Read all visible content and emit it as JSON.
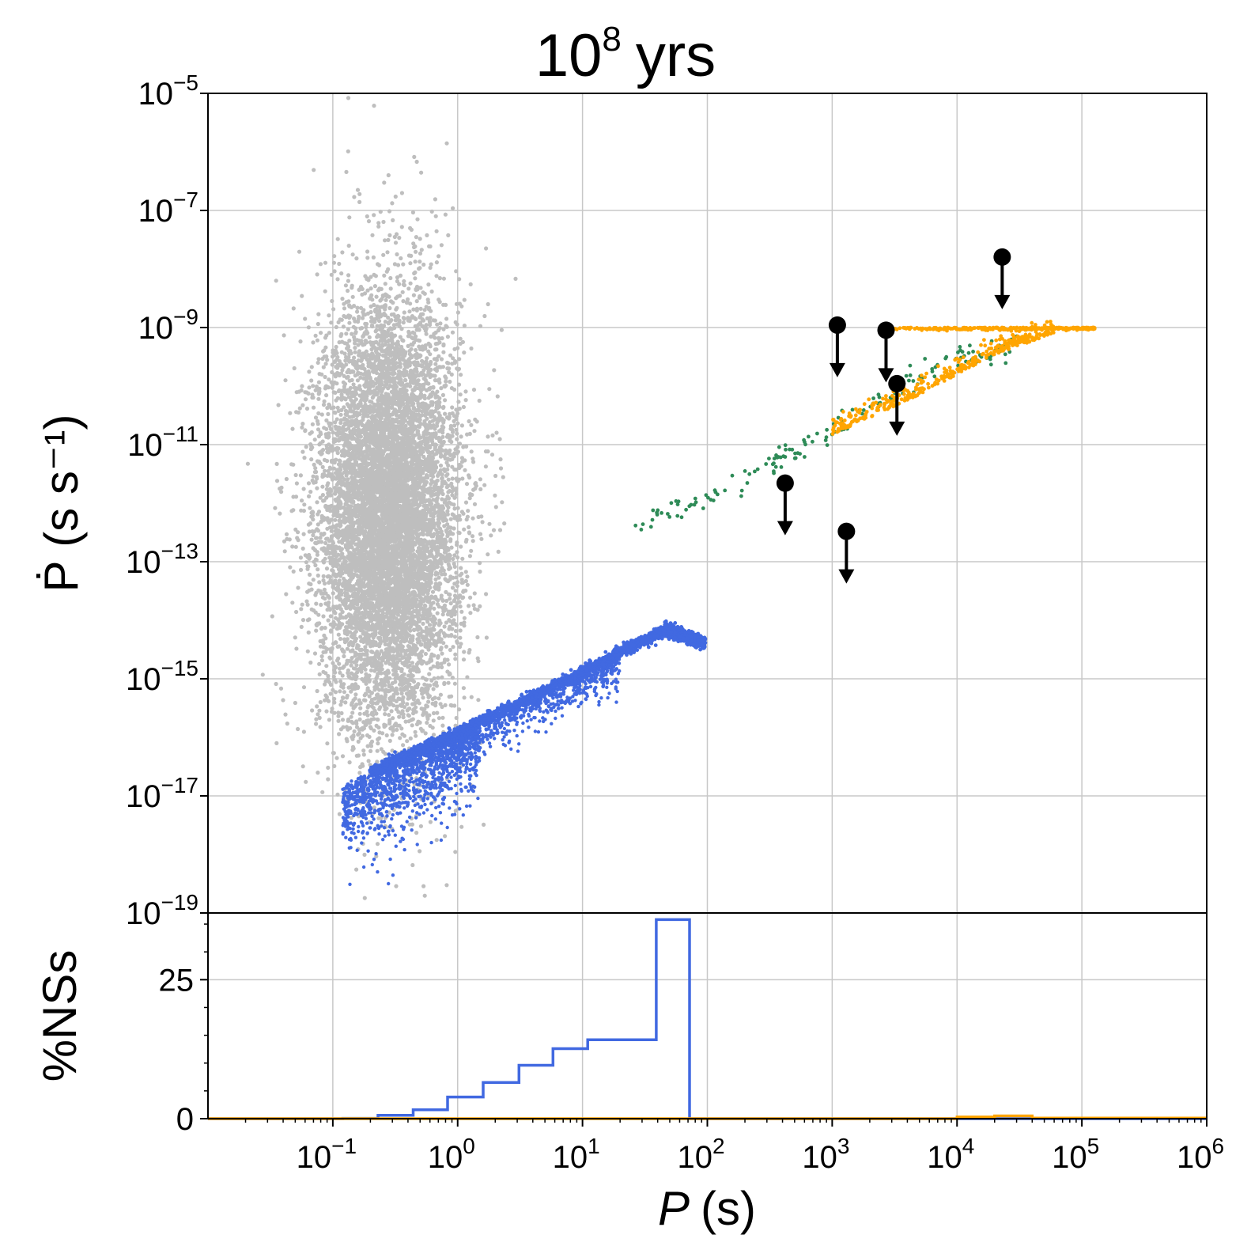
{
  "chart_data": [
    {
      "type": "scatter",
      "title_base": "10",
      "title_exp": "8",
      "title_unit": "yrs",
      "ylabel": "Ṗ (s s⁻¹)",
      "xscale": "log",
      "yscale": "log",
      "xlim": [
        0.01,
        1000000
      ],
      "ylim": [
        1e-19,
        1e-05
      ],
      "grid": true,
      "yticks": [
        {
          "value": 1e-19,
          "base": "10",
          "exp": "−19"
        },
        {
          "value": 1e-17,
          "base": "10",
          "exp": "−17"
        },
        {
          "value": 1e-15,
          "base": "10",
          "exp": "−15"
        },
        {
          "value": 1e-13,
          "base": "10",
          "exp": "−13"
        },
        {
          "value": 1e-11,
          "base": "10",
          "exp": "−11"
        },
        {
          "value": 1e-09,
          "base": "10",
          "exp": "−9"
        },
        {
          "value": 1e-07,
          "base": "10",
          "exp": "−7"
        },
        {
          "value": 1e-05,
          "base": "10",
          "exp": "−5"
        }
      ],
      "colors": {
        "gray": "#bebebe",
        "blue": "#4169e1",
        "green": "#2e8b57",
        "orange": "#ffa500",
        "upper_limits": "#000000"
      },
      "series": [
        {
          "color_key": "gray",
          "distribution": {
            "x_log10_center": -0.55,
            "x_log10_sd": 0.28,
            "y_log10_center": -12.2,
            "y_log10_sd": 1.85,
            "count": 9000
          }
        },
        {
          "color_key": "blue",
          "trend_points": [
            [
              0.2,
              2.5e-17
            ],
            [
              1,
              1.2e-16
            ],
            [
              10,
              1.3e-15
            ],
            [
              47,
              7e-15
            ],
            [
              95,
              4e-15
            ]
          ],
          "scatter_below_trend": {
            "x_range": [
              0.12,
              1.5
            ],
            "y_range": [
              1.5e-19,
              5e-17
            ]
          }
        },
        {
          "color_key": "green",
          "trend_points": [
            [
              25,
              4e-13
            ],
            [
              200,
              2.5e-12
            ],
            [
              1000,
              2e-11
            ],
            [
              10000,
              3e-10
            ],
            [
              30000,
              5e-10
            ]
          ]
        },
        {
          "color_key": "orange",
          "plateau_y": 1e-09,
          "plateau_x_range": [
            3000,
            130000
          ],
          "trend_points": [
            [
              1000,
              1.5e-11
            ],
            [
              5000,
              7e-11
            ],
            [
              20000,
              3.5e-10
            ],
            [
              60000,
              8e-10
            ]
          ]
        }
      ],
      "upper_limits": [
        {
          "x": 1100,
          "y": 1.1e-09
        },
        {
          "x": 2700,
          "y": 9e-10
        },
        {
          "x": 3300,
          "y": 1.1e-10
        },
        {
          "x": 23000,
          "y": 1.6e-08
        },
        {
          "x": 420,
          "y": 2.2e-12
        },
        {
          "x": 1300,
          "y": 3.3e-13
        }
      ]
    },
    {
      "type": "line",
      "xlabel_var": "P",
      "xlabel_unit": "(s)",
      "ylabel": "%NSs",
      "xscale": "log",
      "xlim": [
        0.01,
        1000000
      ],
      "ylim": [
        0,
        37
      ],
      "yticks": [
        0,
        25
      ],
      "xticks": [
        {
          "value": 0.1,
          "base": "10",
          "exp": "−1"
        },
        {
          "value": 1,
          "base": "10",
          "exp": "0"
        },
        {
          "value": 10,
          "base": "10",
          "exp": "1"
        },
        {
          "value": 100,
          "base": "10",
          "exp": "2"
        },
        {
          "value": 1000,
          "base": "10",
          "exp": "3"
        },
        {
          "value": 10000,
          "base": "10",
          "exp": "4"
        },
        {
          "value": 100000,
          "base": "10",
          "exp": "5"
        },
        {
          "value": 1000000,
          "base": "10",
          "exp": "6"
        }
      ],
      "series": [
        {
          "color_key": "blue",
          "step_edges": [
            0.01,
            0.12,
            0.23,
            0.44,
            0.83,
            1.6,
            3.1,
            5.8,
            11,
            39,
            72,
            1000000
          ],
          "step_values": [
            0,
            0.05,
            0.6,
            1.6,
            3.9,
            6.5,
            9.6,
            12.6,
            14.2,
            35.8,
            0
          ]
        },
        {
          "color_key": "orange",
          "step_edges": [
            0.01,
            10000,
            20000,
            40000,
            1000000
          ],
          "step_values": [
            0,
            0.3,
            0.5,
            0.1
          ]
        }
      ]
    }
  ]
}
